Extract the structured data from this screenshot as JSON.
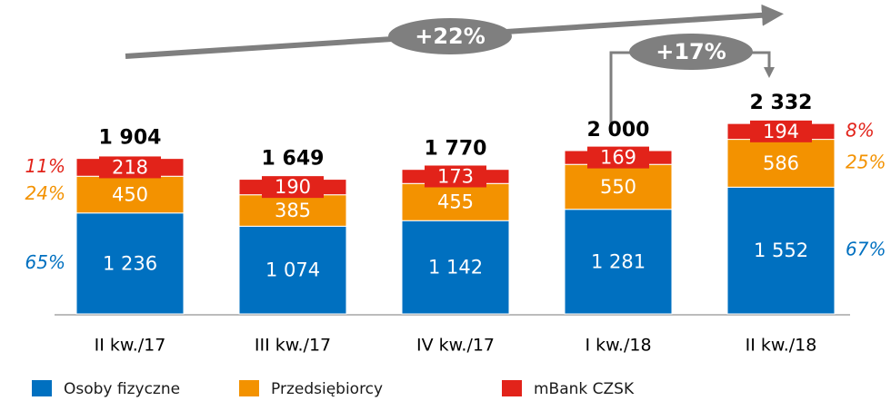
{
  "chart_data": {
    "type": "stacked_bar",
    "categories": [
      "II kw./17",
      "III kw./17",
      "IV kw./17",
      "I kw./18",
      "II kw./18"
    ],
    "series": [
      {
        "name": "Osoby fizyczne",
        "color": "#0070c0",
        "values": [
          1236,
          1074,
          1142,
          1281,
          1552
        ],
        "value_labels": [
          "1 236",
          "1 074",
          "1 142",
          "1 281",
          "1 552"
        ]
      },
      {
        "name": "Przedsiębiorcy",
        "color": "#f39200",
        "values": [
          450,
          385,
          455,
          550,
          586
        ]
      },
      {
        "name": "mBank CZSK",
        "color": "#e2231a",
        "values": [
          218,
          190,
          173,
          169,
          194
        ]
      }
    ],
    "totals": {
      "values": [
        1904,
        1649,
        1770,
        2000,
        2332
      ],
      "value_labels": [
        "1 904",
        "1 649",
        "1 770",
        "2 000",
        "2 332"
      ]
    },
    "shares_first": [
      {
        "value": 65,
        "label": "65%"
      },
      {
        "value": 24,
        "label": "24%"
      },
      {
        "value": 11,
        "label": "11%"
      }
    ],
    "shares_last": [
      {
        "value": 67,
        "label": "67%"
      },
      {
        "value": 25,
        "label": "25%"
      },
      {
        "value": 8,
        "label": "8%"
      }
    ],
    "annotations": [
      "+22%",
      "+17%"
    ],
    "ylim": [
      0,
      3800
    ]
  }
}
